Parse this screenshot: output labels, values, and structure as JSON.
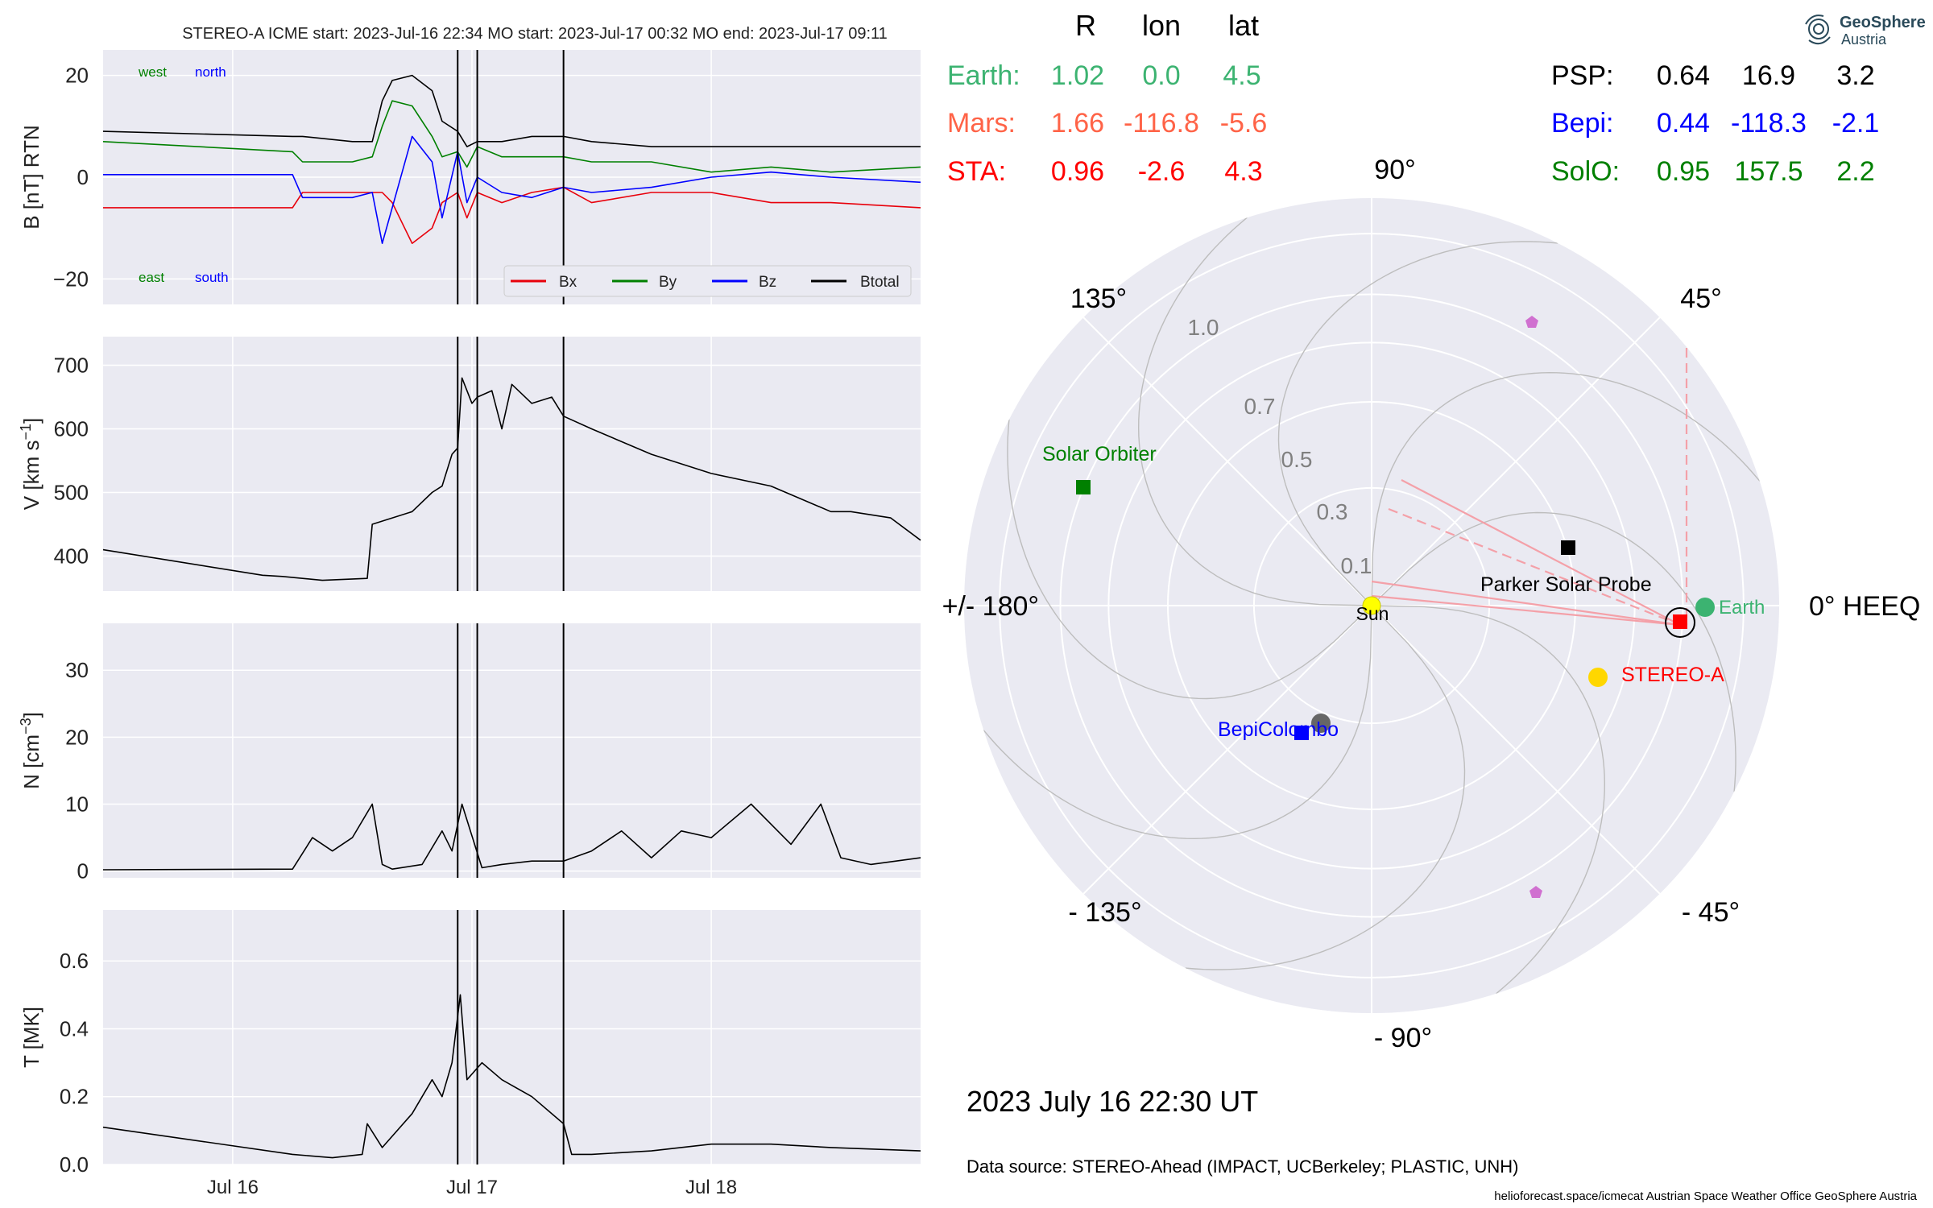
{
  "header": {
    "left_title": "STEREO-A    ICME start: 2023-Jul-16 22:34   MO start: 2023-Jul-17 00:32   MO end: 2023-Jul-17 09:11",
    "logo_line1": "GeoSphere",
    "logo_line2": "Austria"
  },
  "colors": {
    "panel_bg": "#eaeaf2",
    "grid": "#ffffff",
    "bx": "#e8000b",
    "by": "#008000",
    "bz": "#0000ff",
    "btotal": "#000000",
    "earth": "#3cb371",
    "mars": "#ff6347",
    "sta": "#ff0000",
    "psp": "#000000",
    "bepi": "#0000ff",
    "solo": "#008000",
    "sun": "#ffff00",
    "planet_violet": "#d070d0"
  },
  "positions_table": {
    "headers": [
      "R",
      "lon",
      "lat"
    ],
    "rows_left": [
      {
        "name": "Earth:",
        "R": "1.02",
        "lon": "0.0",
        "lat": "4.5",
        "color": "#3cb371"
      },
      {
        "name": "Mars:",
        "R": "1.66",
        "lon": "-116.8",
        "lat": "-5.6",
        "color": "#ff6347"
      },
      {
        "name": "STA:",
        "R": "0.96",
        "lon": "-2.6",
        "lat": "4.3",
        "color": "#ff0000"
      }
    ],
    "rows_right": [
      {
        "name": "PSP:",
        "R": "0.64",
        "lon": "16.9",
        "lat": "3.2",
        "color": "#000000"
      },
      {
        "name": "Bepi:",
        "R": "0.44",
        "lon": "-118.3",
        "lat": "-2.1",
        "color": "#0000ff"
      },
      {
        "name": "SolO:",
        "R": "0.95",
        "lon": "157.5",
        "lat": "2.2",
        "color": "#008000"
      }
    ]
  },
  "polar": {
    "angle_labels": [
      "90°",
      "45°",
      "0° HEEQ",
      "- 45°",
      "- 90°",
      "- 135°",
      "+/- 180°",
      "135°"
    ],
    "radial_labels": [
      "0.1",
      "0.3",
      "0.5",
      "0.7",
      "1.0"
    ],
    "body_labels": {
      "sun": "Sun",
      "earth": "Earth",
      "sta": "STEREO-A",
      "psp": "Parker Solar Probe",
      "solo": "Solar Orbiter",
      "bepi": "BepiColombo"
    },
    "timestamp": "2023 July 16  22:30 UT"
  },
  "footer": {
    "data_source": "Data source: STEREO-Ahead (IMPACT, UCBerkeley; PLASTIC, UNH)",
    "credits": "helioforecast.space/icmecat   Austrian Space Weather Office   GeoSphere Austria"
  },
  "chart_data": [
    {
      "type": "line",
      "title": "STEREO-A    ICME start: 2023-Jul-16 22:34   MO start: 2023-Jul-17 00:32   MO end: 2023-Jul-17 09:11",
      "ylabel": "B [nT] RTN",
      "ylim": [
        -25,
        25
      ],
      "yticks": [
        -20,
        0,
        20
      ],
      "xlim": [
        "2023-07-15 11:00",
        "2023-07-18 21:00"
      ],
      "xticks": [
        "Jul 16",
        "Jul 17",
        "Jul 18"
      ],
      "grid": true,
      "legend": "lower right",
      "legend_entries": [
        "Bx",
        "By",
        "Bz",
        "Btotal"
      ],
      "annotations": [
        "west",
        "north",
        "east",
        "south"
      ],
      "event_lines": [
        "2023-07-16 22:34",
        "2023-07-17 00:32",
        "2023-07-17 09:11"
      ],
      "series": [
        {
          "name": "Bx",
          "x": [
            "07-15 11:00",
            "07-16 06:00",
            "07-16 07:00",
            "07-16 12:00",
            "07-16 15:00",
            "07-16 16:00",
            "07-16 18:00",
            "07-16 20:00",
            "07-16 21:00",
            "07-16 22:34",
            "07-16 23:30",
            "07-17 00:32",
            "07-17 03:00",
            "07-17 06:00",
            "07-17 09:11",
            "07-17 12:00",
            "07-17 18:00",
            "07-18 00:00",
            "07-18 06:00",
            "07-18 12:00",
            "07-18 21:00"
          ],
          "y": [
            -6,
            -6,
            -3,
            -3,
            -3,
            -5,
            -13,
            -10,
            -5,
            -3,
            -8,
            -3,
            -5,
            -3,
            -2,
            -5,
            -3,
            -3,
            -5,
            -5,
            -6
          ]
        },
        {
          "name": "By",
          "x": [
            "07-15 11:00",
            "07-16 06:00",
            "07-16 07:00",
            "07-16 12:00",
            "07-16 14:00",
            "07-16 15:00",
            "07-16 16:00",
            "07-16 18:00",
            "07-16 20:00",
            "07-16 21:00",
            "07-16 22:34",
            "07-16 23:30",
            "07-17 00:32",
            "07-17 03:00",
            "07-17 06:00",
            "07-17 09:11",
            "07-17 12:00",
            "07-17 18:00",
            "07-18 00:00",
            "07-18 06:00",
            "07-18 12:00",
            "07-18 21:00"
          ],
          "y": [
            7,
            5,
            3,
            3,
            4,
            10,
            15,
            14,
            8,
            4,
            5,
            2,
            6,
            4,
            4,
            4,
            3,
            3,
            1,
            2,
            1,
            2
          ]
        },
        {
          "name": "Bz",
          "x": [
            "07-15 11:00",
            "07-16 06:00",
            "07-16 07:00",
            "07-16 12:00",
            "07-16 14:00",
            "07-16 15:00",
            "07-16 16:00",
            "07-16 18:00",
            "07-16 20:00",
            "07-16 21:00",
            "07-16 22:34",
            "07-16 23:30",
            "07-17 00:32",
            "07-17 03:00",
            "07-17 06:00",
            "07-17 09:11",
            "07-17 12:00",
            "07-17 18:00",
            "07-18 00:00",
            "07-18 06:00",
            "07-18 12:00",
            "07-18 21:00"
          ],
          "y": [
            0.5,
            0.5,
            -4,
            -4,
            -3,
            -13,
            -6,
            8,
            3,
            -8,
            5,
            -5,
            0,
            -3,
            -4,
            -2,
            -3,
            -2,
            0,
            1,
            0,
            -1
          ]
        },
        {
          "name": "Btotal",
          "x": [
            "07-15 11:00",
            "07-16 06:00",
            "07-16 07:00",
            "07-16 12:00",
            "07-16 14:00",
            "07-16 15:00",
            "07-16 16:00",
            "07-16 18:00",
            "07-16 20:00",
            "07-16 21:00",
            "07-16 22:34",
            "07-16 23:30",
            "07-17 00:32",
            "07-17 03:00",
            "07-17 06:00",
            "07-17 09:11",
            "07-17 12:00",
            "07-17 18:00",
            "07-18 00:00",
            "07-18 06:00",
            "07-18 12:00",
            "07-18 21:00"
          ],
          "y": [
            9,
            8,
            8,
            7,
            7,
            15,
            19,
            20,
            17,
            11,
            9,
            6,
            7,
            7,
            8,
            8,
            7,
            6,
            6,
            6,
            6,
            6
          ]
        }
      ]
    },
    {
      "type": "line",
      "ylabel": "V [km s",
      "ylabel_sup": "−1",
      "ylabel_end": "]",
      "ylim": [
        345,
        745
      ],
      "yticks": [
        400,
        500,
        600,
        700
      ],
      "grid": true,
      "series": [
        {
          "name": "",
          "x": [
            "07-15 11:00",
            "07-16 03:00",
            "07-16 05:00",
            "07-16 09:00",
            "07-16 13:30",
            "07-16 14:00",
            "07-16 18:00",
            "07-16 20:00",
            "07-16 21:00",
            "07-16 22:00",
            "07-16 22:34",
            "07-16 23:00",
            "07-17 00:00",
            "07-17 00:32",
            "07-17 02:00",
            "07-17 03:00",
            "07-17 04:00",
            "07-17 06:00",
            "07-17 08:00",
            "07-17 09:11",
            "07-17 12:00",
            "07-17 18:00",
            "07-18 00:00",
            "07-18 06:00",
            "07-18 12:00",
            "07-18 14:00",
            "07-18 18:00",
            "07-18 21:00"
          ],
          "y": [
            410,
            370,
            368,
            362,
            365,
            450,
            470,
            500,
            510,
            560,
            570,
            680,
            640,
            650,
            660,
            600,
            670,
            640,
            650,
            620,
            600,
            560,
            530,
            510,
            470,
            470,
            460,
            425
          ]
        }
      ]
    },
    {
      "type": "line",
      "ylabel": "N [cm",
      "ylabel_sup": "−3",
      "ylabel_end": "]",
      "ylim": [
        -1,
        37
      ],
      "yticks": [
        0,
        10,
        20,
        30
      ],
      "grid": true,
      "series": [
        {
          "name": "",
          "x": [
            "07-15 11:00",
            "07-16 06:00",
            "07-16 08:00",
            "07-16 10:00",
            "07-16 12:00",
            "07-16 14:00",
            "07-16 15:00",
            "07-16 16:00",
            "07-16 19:00",
            "07-16 21:00",
            "07-16 22:00",
            "07-16 23:00",
            "07-17 01:00",
            "07-17 03:00",
            "07-17 06:00",
            "07-17 09:11",
            "07-17 12:00",
            "07-17 15:00",
            "07-17 18:00",
            "07-17 21:00",
            "07-18 00:00",
            "07-18 04:00",
            "07-18 08:00",
            "07-18 11:00",
            "07-18 13:00",
            "07-18 16:00",
            "07-18 21:00"
          ],
          "y": [
            0.2,
            0.3,
            5,
            3,
            5,
            10,
            1,
            0.3,
            1,
            6,
            3,
            10,
            0.5,
            1,
            1.5,
            1.5,
            3,
            6,
            2,
            6,
            5,
            10,
            4,
            10,
            2,
            1,
            2
          ]
        }
      ]
    },
    {
      "type": "line",
      "ylabel": "T [MK]",
      "ylim": [
        0,
        0.75
      ],
      "yticks": [
        0.0,
        0.2,
        0.4,
        0.6
      ],
      "grid": true,
      "series": [
        {
          "name": "",
          "x": [
            "07-15 11:00",
            "07-16 06:00",
            "07-16 10:00",
            "07-16 13:00",
            "07-16 13:30",
            "07-16 15:00",
            "07-16 18:00",
            "07-16 20:00",
            "07-16 21:00",
            "07-16 22:00",
            "07-16 22:50",
            "07-16 23:30",
            "07-17 01:00",
            "07-17 03:00",
            "07-17 06:00",
            "07-17 09:11",
            "07-17 10:00",
            "07-17 12:00",
            "07-17 18:00",
            "07-18 00:00",
            "07-18 06:00",
            "07-18 12:00",
            "07-18 21:00"
          ],
          "y": [
            0.11,
            0.03,
            0.02,
            0.03,
            0.12,
            0.05,
            0.15,
            0.25,
            0.2,
            0.3,
            0.5,
            0.25,
            0.3,
            0.25,
            0.2,
            0.12,
            0.03,
            0.03,
            0.04,
            0.06,
            0.06,
            0.05,
            0.04
          ]
        }
      ]
    }
  ]
}
